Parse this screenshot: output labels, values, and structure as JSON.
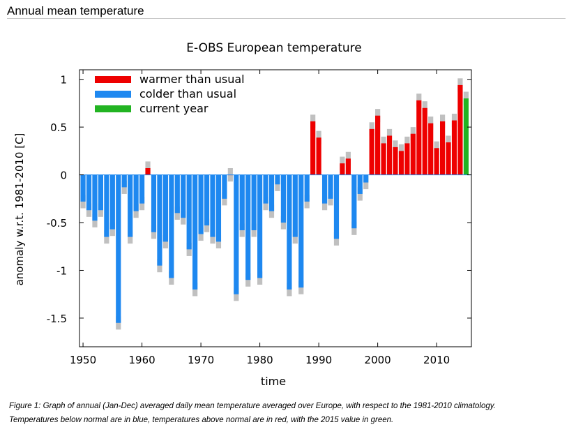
{
  "page": {
    "heading": "Annual mean temperature",
    "caption_line1": "Figure 1: Graph of annual (Jan-Dec) averaged daily mean temperature averaged over Europe, with respect to the 1981-2010 climatology.",
    "caption_line2": "Temperatures below normal are in blue, temperatures above normal are in red, with the 2015 value in green."
  },
  "colors": {
    "warm": "#ee0000",
    "cold": "#1e88f0",
    "current": "#22b422",
    "uncertainty": "#c0c0c0",
    "axis": "#000000"
  },
  "chart_data": {
    "type": "bar",
    "title": "E-OBS European temperature",
    "xlabel": "time",
    "ylabel": "anomaly w.r.t. 1981-2010 [C]",
    "xlim": [
      1949.4,
      2015.9
    ],
    "ylim": [
      -1.8,
      1.1
    ],
    "x_ticks": [
      1950,
      1960,
      1970,
      1980,
      1990,
      2000,
      2010
    ],
    "y_ticks": [
      1,
      0.5,
      0,
      -0.5,
      -1,
      -1.5
    ],
    "y_tick_labels": [
      "1",
      "0.5",
      "0",
      "-0.5",
      "-1",
      "-1.5"
    ],
    "legend": {
      "placement": "top-left",
      "entries": [
        {
          "label": "warmer than usual",
          "color_key": "warm"
        },
        {
          "label": "colder than usual",
          "color_key": "cold"
        },
        {
          "label": "current year",
          "color_key": "current"
        }
      ]
    },
    "current_year": 2015,
    "uncertainty": 0.07,
    "years": [
      1950,
      1951,
      1952,
      1953,
      1954,
      1955,
      1956,
      1957,
      1958,
      1959,
      1960,
      1961,
      1962,
      1963,
      1964,
      1965,
      1966,
      1967,
      1968,
      1969,
      1970,
      1971,
      1972,
      1973,
      1974,
      1975,
      1976,
      1977,
      1978,
      1979,
      1980,
      1981,
      1982,
      1983,
      1984,
      1985,
      1986,
      1987,
      1988,
      1989,
      1990,
      1991,
      1992,
      1993,
      1994,
      1995,
      1996,
      1997,
      1998,
      1999,
      2000,
      2001,
      2002,
      2003,
      2004,
      2005,
      2006,
      2007,
      2008,
      2009,
      2010,
      2011,
      2012,
      2013,
      2014,
      2015
    ],
    "values": [
      -0.28,
      -0.37,
      -0.48,
      -0.37,
      -0.65,
      -0.57,
      -1.55,
      -0.13,
      -0.65,
      -0.38,
      -0.3,
      0.07,
      -0.6,
      -0.95,
      -0.7,
      -1.08,
      -0.4,
      -0.45,
      -0.78,
      -1.2,
      -0.62,
      -0.53,
      -0.65,
      -0.7,
      -0.25,
      0.0,
      -1.25,
      -0.58,
      -1.1,
      -0.58,
      -1.08,
      -0.3,
      -0.38,
      -0.1,
      -0.5,
      -1.2,
      -0.65,
      -1.18,
      -0.28,
      0.56,
      0.39,
      -0.3,
      -0.25,
      -0.67,
      0.12,
      0.17,
      -0.56,
      -0.2,
      -0.08,
      0.48,
      0.62,
      0.33,
      0.41,
      0.29,
      0.25,
      0.33,
      0.43,
      0.78,
      0.7,
      0.54,
      0.28,
      0.56,
      0.34,
      0.57,
      0.94,
      0.8
    ]
  }
}
